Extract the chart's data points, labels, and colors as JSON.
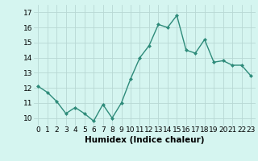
{
  "x": [
    0,
    1,
    2,
    3,
    4,
    5,
    6,
    7,
    8,
    9,
    10,
    11,
    12,
    13,
    14,
    15,
    16,
    17,
    18,
    19,
    20,
    21,
    22,
    23
  ],
  "y": [
    12.1,
    11.7,
    11.1,
    10.3,
    10.7,
    10.3,
    9.8,
    10.9,
    10.0,
    11.0,
    12.6,
    14.0,
    14.8,
    16.2,
    16.0,
    16.8,
    14.5,
    14.3,
    15.2,
    13.7,
    13.8,
    13.5,
    13.5,
    12.8
  ],
  "line_color": "#2e8b7a",
  "marker": "D",
  "markersize": 2.0,
  "linewidth": 1.0,
  "bg_color": "#d5f5f0",
  "grid_color": "#b8d8d4",
  "xlabel": "Humidex (Indice chaleur)",
  "xlim": [
    -0.5,
    23.5
  ],
  "ylim": [
    9.5,
    17.5
  ],
  "yticks": [
    10,
    11,
    12,
    13,
    14,
    15,
    16,
    17
  ],
  "xtick_labels": [
    "0",
    "1",
    "2",
    "3",
    "4",
    "5",
    "6",
    "7",
    "8",
    "9",
    "10",
    "11",
    "12",
    "13",
    "14",
    "15",
    "16",
    "17",
    "18",
    "19",
    "20",
    "21",
    "22",
    "23"
  ],
  "tick_fontsize": 6.5,
  "xlabel_fontsize": 7.5
}
